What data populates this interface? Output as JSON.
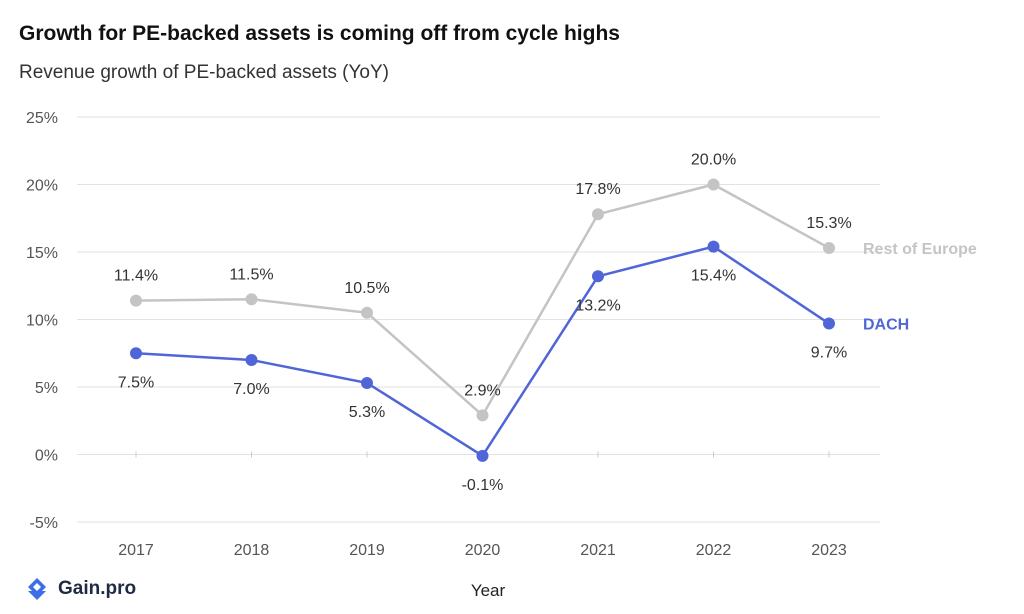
{
  "header": {
    "title": "Growth for PE-backed assets is coming off from cycle highs",
    "subtitle": "Revenue growth of PE-backed assets (YoY)"
  },
  "brand": {
    "name": "Gain.pro",
    "logo_icon": "gain-pro-logo-icon",
    "color": "#3b6ee8"
  },
  "chart_data": {
    "type": "line",
    "title": "Growth for PE-backed assets is coming off from cycle highs",
    "subtitle": "Revenue growth of PE-backed assets (YoY)",
    "xlabel": "Year",
    "ylabel": "",
    "x": [
      "2017",
      "2018",
      "2019",
      "2020",
      "2021",
      "2022",
      "2023"
    ],
    "ylim": [
      -5,
      25
    ],
    "yticks": [
      -5,
      0,
      5,
      10,
      15,
      20,
      25
    ],
    "ytick_labels": [
      "-5%",
      "0%",
      "5%",
      "10%",
      "15%",
      "20%",
      "25%"
    ],
    "grid": true,
    "legend": "direct labels at line ends (right)",
    "series": [
      {
        "name": "Rest of Europe",
        "color": "#c4c4c4",
        "values": [
          11.4,
          11.5,
          10.5,
          2.9,
          17.8,
          20.0,
          15.3
        ],
        "labels": [
          "11.4%",
          "11.5%",
          "10.5%",
          "2.9%",
          "17.8%",
          "20.0%",
          "15.3%"
        ],
        "label_positions": [
          "above",
          "above",
          "above",
          "above",
          "above",
          "above",
          "above"
        ]
      },
      {
        "name": "DACH",
        "color": "#5066d8",
        "values": [
          7.5,
          7.0,
          5.3,
          -0.1,
          13.2,
          15.4,
          9.7
        ],
        "labels": [
          "7.5%",
          "7.0%",
          "5.3%",
          "-0.1%",
          "13.2%",
          "15.4%",
          "9.7%"
        ],
        "label_positions": [
          "below",
          "below",
          "below",
          "below",
          "below",
          "below",
          "below"
        ]
      }
    ]
  }
}
